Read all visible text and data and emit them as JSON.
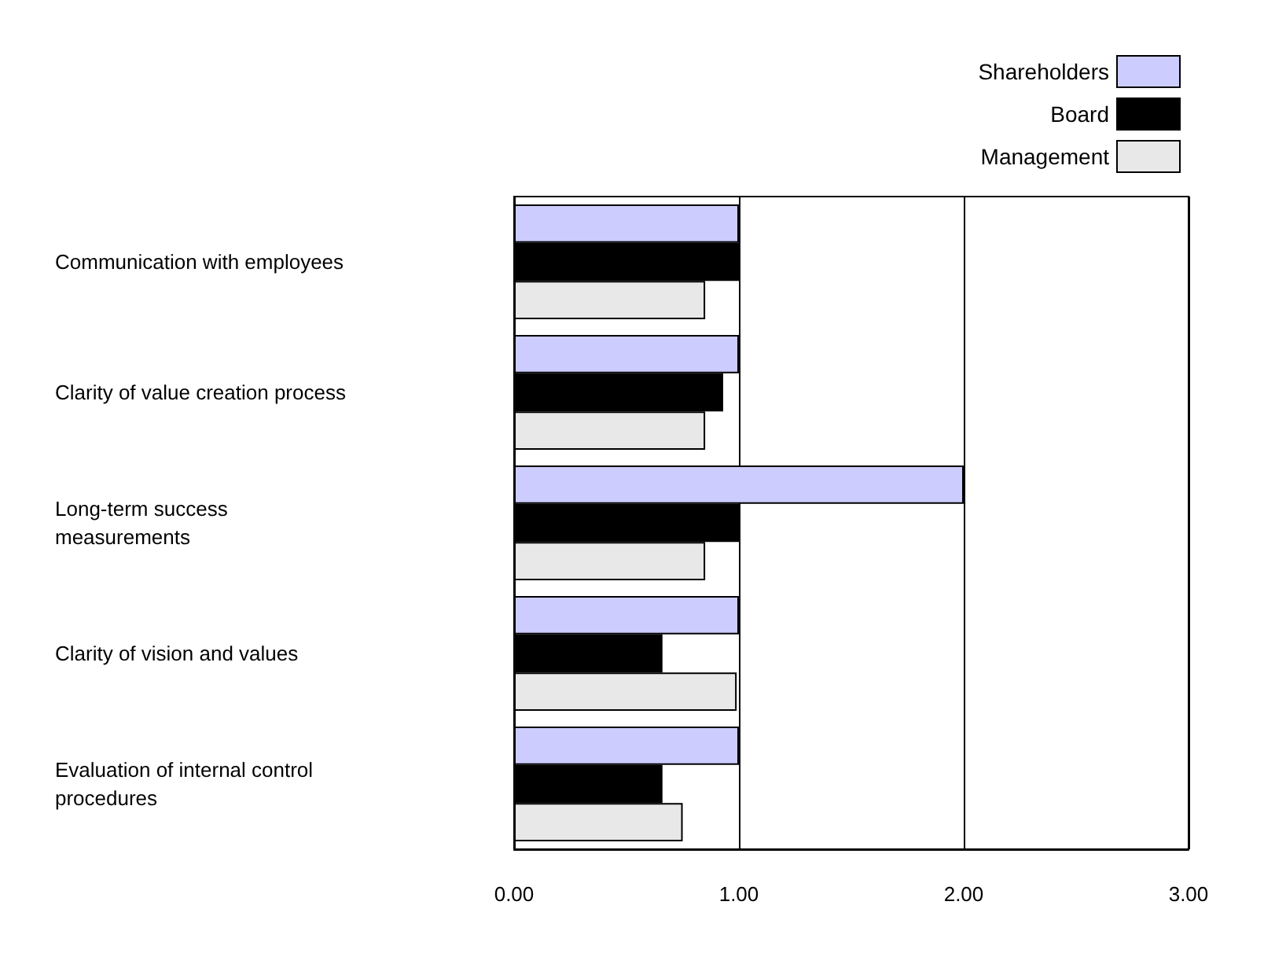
{
  "chart_data": {
    "type": "bar",
    "orientation": "horizontal",
    "categories": [
      "Communication with employees",
      "Clarity of value creation process",
      "Long-term success measurements",
      "Clarity of vision and values",
      "Evaluation of internal control procedures"
    ],
    "series": [
      {
        "name": "Shareholders",
        "color": "#ccccff",
        "values": [
          1.0,
          1.0,
          2.0,
          1.0,
          1.0
        ]
      },
      {
        "name": "Board",
        "color": "#000000",
        "values": [
          1.0,
          0.93,
          1.0,
          0.66,
          0.66
        ]
      },
      {
        "name": "Management",
        "color": "#e8e8e8",
        "values": [
          0.85,
          0.85,
          0.85,
          0.99,
          0.75
        ]
      }
    ],
    "xlim": [
      0,
      3
    ],
    "xticks": [
      {
        "value": 0,
        "label": "0.00"
      },
      {
        "value": 1,
        "label": "1.00"
      },
      {
        "value": 2,
        "label": "2.00"
      },
      {
        "value": 3,
        "label": "3.00"
      }
    ],
    "grid": "x",
    "legend": "top right"
  }
}
